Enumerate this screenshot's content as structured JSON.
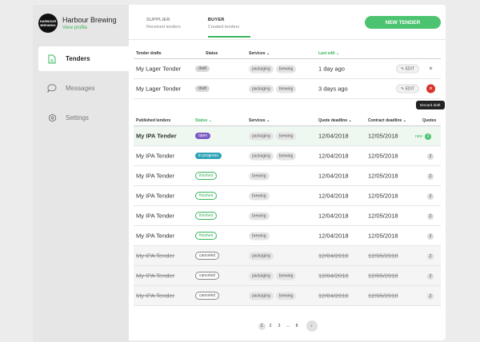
{
  "brand": {
    "logo_text": "HARBOUR BREWING",
    "name": "Harbour Brewing",
    "link": "View profile"
  },
  "nav": [
    {
      "label": "Tenders",
      "icon": "document-icon",
      "active": true
    },
    {
      "label": "Messages",
      "icon": "chat-bubble-icon",
      "active": false
    },
    {
      "label": "Settings",
      "icon": "gear-icon",
      "active": false
    }
  ],
  "tabs": [
    {
      "title": "SUPPLIER",
      "sub": "Received tenders",
      "active": false
    },
    {
      "title": "BUYER",
      "sub": "Created tenders",
      "active": true
    }
  ],
  "new_tender_label": "NEW TENDER",
  "drafts": {
    "headers": {
      "name": "Tender drafts",
      "status": "Status",
      "services": "Services",
      "last_edit": "Last edit"
    },
    "rows": [
      {
        "name": "My Lager Tender",
        "status": "draft",
        "services": [
          "packaging",
          "brewing"
        ],
        "last_edit": "1 day ago",
        "edit": "EDIT"
      },
      {
        "name": "My Lager Tender",
        "status": "draft",
        "services": [
          "packaging",
          "brewing"
        ],
        "last_edit": "3 days ago",
        "edit": "EDIT"
      }
    ],
    "tooltip": "Discard draft"
  },
  "published": {
    "headers": {
      "name": "Published tenders",
      "status": "Status",
      "services": "Services",
      "quote_deadline": "Quote deadline",
      "contract_deadline": "Contract deadline",
      "quotes": "Quotes"
    },
    "rows": [
      {
        "name": "My IPA Tender",
        "status": "open",
        "services": [
          "packaging",
          "brewing"
        ],
        "quote": "12/04/2018",
        "contract": "12/05/2018",
        "new": "new",
        "quotes": "2"
      },
      {
        "name": "My IPA Tender",
        "status": "in progress",
        "services": [
          "packaging",
          "brewing"
        ],
        "quote": "12/04/2018",
        "contract": "12/05/2018",
        "quotes": "2"
      },
      {
        "name": "My IPA Tender",
        "status": "finished",
        "services": [
          "brewing"
        ],
        "quote": "12/04/2018",
        "contract": "12/05/2018",
        "quotes": "2"
      },
      {
        "name": "My IPA Tender",
        "status": "finished",
        "services": [
          "brewing"
        ],
        "quote": "12/04/2018",
        "contract": "12/05/2018",
        "quotes": "2"
      },
      {
        "name": "My IPA Tender",
        "status": "finished",
        "services": [
          "brewing"
        ],
        "quote": "12/04/2018",
        "contract": "12/05/2018",
        "quotes": "2"
      },
      {
        "name": "My IPA Tender",
        "status": "finished",
        "services": [
          "brewing"
        ],
        "quote": "12/04/2018",
        "contract": "12/05/2018",
        "quotes": "2"
      },
      {
        "name": "My IPA Tender",
        "status": "canceled",
        "services": [
          "packaging"
        ],
        "quote": "12/04/2018",
        "contract": "12/05/2018",
        "quotes": "2"
      },
      {
        "name": "My IPA Tender",
        "status": "canceled",
        "services": [
          "packaging",
          "brewing"
        ],
        "quote": "12/04/2018",
        "contract": "12/05/2018",
        "quotes": "2"
      },
      {
        "name": "My IPA Tender",
        "status": "canceled",
        "services": [
          "packaging",
          "brewing"
        ],
        "quote": "12/04/2018",
        "contract": "12/05/2018",
        "quotes": "2"
      }
    ]
  },
  "pagination": [
    "1",
    "2",
    "3",
    "...",
    "8"
  ],
  "colors": {
    "accent": "#3bb55c",
    "open": "#7b58c4",
    "in_progress": "#2da3b6",
    "danger": "#d9332a"
  }
}
